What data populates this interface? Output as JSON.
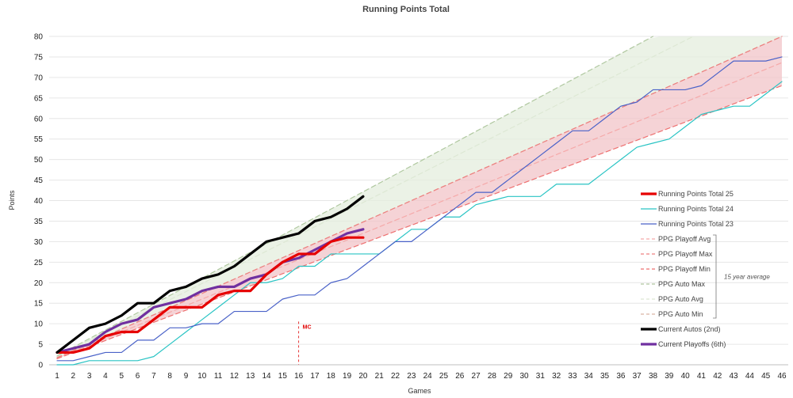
{
  "chart_data": {
    "type": "line",
    "title": "Running Points Total",
    "xlabel": "Games",
    "ylabel": "Points",
    "xlim": [
      1,
      46
    ],
    "ylim": [
      0,
      80
    ],
    "x_ticks": [
      1,
      2,
      3,
      4,
      5,
      6,
      7,
      8,
      9,
      10,
      11,
      12,
      13,
      14,
      15,
      16,
      17,
      18,
      19,
      20,
      21,
      22,
      23,
      24,
      25,
      26,
      27,
      28,
      29,
      30,
      31,
      32,
      33,
      34,
      35,
      36,
      37,
      38,
      39,
      40,
      41,
      42,
      43,
      44,
      45,
      46
    ],
    "y_ticks": [
      0,
      5,
      10,
      15,
      20,
      25,
      30,
      35,
      40,
      45,
      50,
      55,
      60,
      65,
      70,
      75,
      80
    ],
    "grid": "horizontal",
    "legend_position": "right",
    "series": [
      {
        "name": "Running Points Total 25",
        "style": "solid-thick",
        "color": "#e60000",
        "x": [
          1,
          2,
          3,
          4,
          5,
          6,
          7,
          8,
          9,
          10,
          11,
          12,
          13,
          14,
          15,
          16,
          17,
          18,
          19,
          20
        ],
        "y": [
          3,
          3,
          4,
          7,
          8,
          8,
          11,
          14,
          14,
          14,
          17,
          18,
          18,
          22,
          25,
          27,
          27,
          30,
          31,
          31
        ]
      },
      {
        "name": "Running Points Total 24",
        "style": "solid",
        "color": "#29c4c4",
        "x": [
          1,
          2,
          3,
          4,
          5,
          6,
          7,
          8,
          9,
          10,
          11,
          12,
          13,
          14,
          15,
          16,
          17,
          18,
          19,
          20,
          21,
          22,
          23,
          24,
          25,
          26,
          27,
          28,
          29,
          30,
          31,
          32,
          33,
          34,
          35,
          36,
          37,
          38,
          39,
          40,
          41,
          42,
          43,
          44,
          45,
          46
        ],
        "y": [
          0,
          0,
          1,
          1,
          1,
          1,
          2,
          5,
          8,
          11,
          14,
          17,
          20,
          20,
          21,
          24,
          24,
          27,
          27,
          27,
          27,
          30,
          33,
          33,
          36,
          36,
          39,
          40,
          41,
          41,
          41,
          44,
          44,
          44,
          47,
          50,
          53,
          54,
          55,
          58,
          61,
          62,
          63,
          63,
          66,
          69
        ]
      },
      {
        "name": "Running Points Total 23",
        "style": "solid",
        "color": "#4a62c8",
        "x": [
          1,
          2,
          3,
          4,
          5,
          6,
          7,
          8,
          9,
          10,
          11,
          12,
          13,
          14,
          15,
          16,
          17,
          18,
          19,
          20,
          21,
          22,
          23,
          24,
          25,
          26,
          27,
          28,
          29,
          30,
          31,
          32,
          33,
          34,
          35,
          36,
          37,
          38,
          39,
          40,
          41,
          42,
          43,
          44,
          45,
          46
        ],
        "y": [
          1,
          1,
          2,
          3,
          3,
          6,
          6,
          9,
          9,
          10,
          10,
          13,
          13,
          13,
          16,
          17,
          17,
          20,
          21,
          24,
          27,
          30,
          30,
          33,
          36,
          39,
          42,
          42,
          45,
          48,
          51,
          54,
          57,
          57,
          60,
          63,
          64,
          67,
          67,
          67,
          68,
          71,
          74,
          74,
          74,
          75
        ]
      },
      {
        "name": "PPG Playoff Avg",
        "style": "dashed",
        "color": "#f5a9a9",
        "x": [
          1,
          46
        ],
        "y": [
          1.6,
          73.6
        ]
      },
      {
        "name": "PPG Playoff Max",
        "style": "dashed",
        "color": "#ee8080",
        "x": [
          1,
          46
        ],
        "y": [
          1.74,
          80
        ]
      },
      {
        "name": "PPG Playoff Min",
        "style": "dashed",
        "color": "#ee7070",
        "x": [
          1,
          46
        ],
        "y": [
          1.48,
          68
        ]
      },
      {
        "name": "PPG Auto Max",
        "style": "dashed",
        "color": "#b0c8a0",
        "x": [
          1,
          38
        ],
        "y": [
          2.16,
          80
        ]
      },
      {
        "name": "PPG Auto Avg",
        "style": "dashed",
        "color": "#dde8d4",
        "x": [
          1,
          40.5
        ],
        "y": [
          2.03,
          80
        ]
      },
      {
        "name": "PPG Auto Min",
        "style": "dashed",
        "color": "#d9b4a4",
        "x": [
          1,
          46
        ],
        "y": [
          1.74,
          80
        ]
      },
      {
        "name": "Current Autos (2nd)",
        "style": "solid-thick",
        "color": "#000000",
        "x": [
          1,
          2,
          3,
          4,
          5,
          6,
          7,
          8,
          9,
          10,
          11,
          12,
          13,
          14,
          15,
          16,
          17,
          18,
          19,
          20
        ],
        "y": [
          3,
          6,
          9,
          10,
          12,
          15,
          15,
          18,
          19,
          21,
          22,
          24,
          27,
          30,
          31,
          32,
          35,
          36,
          38,
          41
        ]
      },
      {
        "name": "Current Playoffs (6th)",
        "style": "solid-thick",
        "color": "#7030a0",
        "x": [
          1,
          2,
          3,
          4,
          5,
          6,
          7,
          8,
          9,
          10,
          11,
          12,
          13,
          14,
          15,
          16,
          17,
          18,
          19,
          20
        ],
        "y": [
          3,
          4,
          5,
          8,
          10,
          11,
          14,
          15,
          16,
          18,
          19,
          19,
          21,
          22,
          25,
          26,
          28,
          30,
          32,
          33
        ]
      }
    ],
    "bands": [
      {
        "between": [
          "PPG Playoff Min",
          "PPG Playoff Max"
        ],
        "color": "#f2c4c8"
      },
      {
        "between": [
          "PPG Playoff Max",
          "PPG Auto Max"
        ],
        "color": "#e4eedd"
      }
    ],
    "annotations": [
      {
        "text": "MC",
        "x": 16,
        "y": 9,
        "color": "#e00000",
        "vline": true
      },
      {
        "text": "15 year average",
        "applies_to": [
          "PPG Playoff Avg",
          "PPG Playoff Max",
          "PPG Playoff Min",
          "PPG Auto Max",
          "PPG Auto Avg",
          "PPG Auto Min"
        ]
      }
    ]
  }
}
